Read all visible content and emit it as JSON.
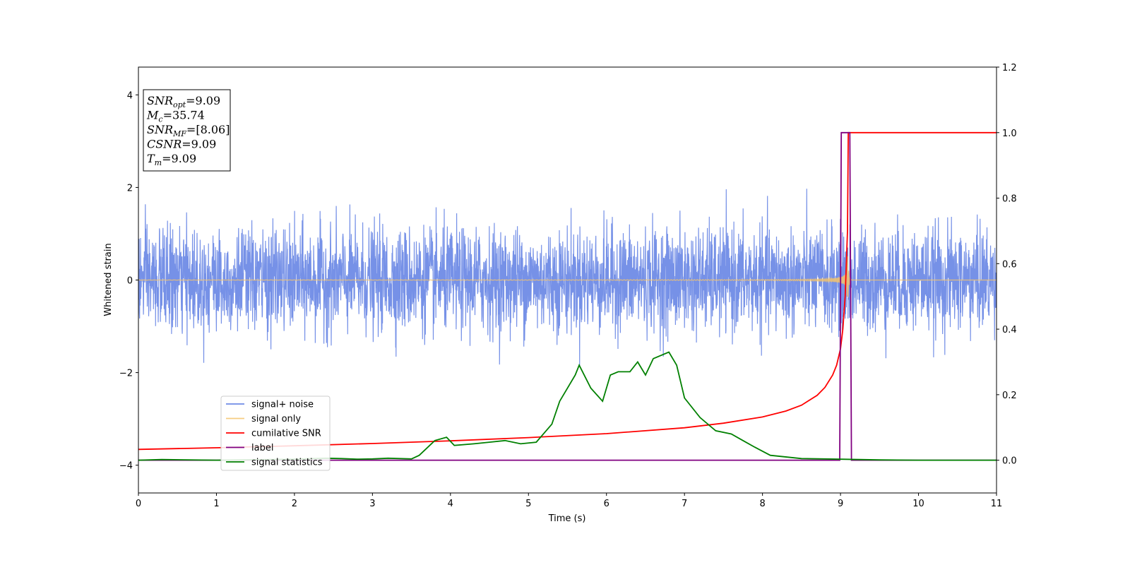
{
  "chart_data": {
    "type": "line",
    "xlabel": "Time (s)",
    "ylabel": "Whitened strain",
    "xlim": [
      0,
      11
    ],
    "ylim_left": [
      -4.6,
      4.6
    ],
    "ylim_right": [
      -0.1,
      1.2
    ],
    "x_ticks": [
      0,
      1,
      2,
      3,
      4,
      5,
      6,
      7,
      8,
      9,
      10,
      11
    ],
    "y_left_ticks": [
      {
        "value": -4,
        "label": "−4"
      },
      {
        "value": -2,
        "label": "−2"
      },
      {
        "value": 0,
        "label": "0"
      },
      {
        "value": 2,
        "label": "2"
      },
      {
        "value": 4,
        "label": "4"
      }
    ],
    "y_right_ticks": [
      {
        "value": 0.0,
        "label": "0.0"
      },
      {
        "value": 0.2,
        "label": "0.2"
      },
      {
        "value": 0.4,
        "label": "0.4"
      },
      {
        "value": 0.6,
        "label": "0.6"
      },
      {
        "value": 0.8,
        "label": "0.8"
      },
      {
        "value": 1.0,
        "label": "1.0"
      },
      {
        "value": 1.2,
        "label": "1.2"
      }
    ],
    "legend_position": "lower-left",
    "grid": false,
    "series": [
      {
        "name": "signal+ noise",
        "color": "#6f8be6",
        "axis": "left",
        "kind": "noise",
        "amplitude_range": [
          -2.2,
          2.2
        ]
      },
      {
        "name": "signal only",
        "color": "#f5c36b",
        "axis": "left",
        "kind": "chirp",
        "merger_time": 9.09
      },
      {
        "name": "cumilative SNR",
        "color": "#ff0000",
        "axis": "right",
        "x": [
          0,
          1,
          2,
          3,
          4,
          5,
          6,
          7,
          7.5,
          8,
          8.3,
          8.5,
          8.7,
          8.8,
          8.9,
          8.95,
          9.0,
          9.03,
          9.06,
          9.09,
          9.1,
          9.2,
          10,
          11
        ],
        "y": [
          0.033,
          0.038,
          0.044,
          0.051,
          0.059,
          0.069,
          0.081,
          0.099,
          0.113,
          0.132,
          0.15,
          0.168,
          0.198,
          0.222,
          0.26,
          0.29,
          0.34,
          0.4,
          0.5,
          0.7,
          1.0,
          1.0,
          1.0,
          1.0
        ]
      },
      {
        "name": "label",
        "color": "#800080",
        "axis": "right",
        "x": [
          0,
          8.99,
          9.01,
          9.12,
          9.14,
          11
        ],
        "y": [
          0,
          0,
          1,
          1,
          0,
          0
        ]
      },
      {
        "name": "signal statistics",
        "color": "#008000",
        "axis": "right",
        "x": [
          0,
          0.3,
          1,
          2,
          2.4,
          2.6,
          2.8,
          3,
          3.2,
          3.5,
          3.6,
          3.8,
          3.95,
          4.05,
          4.3,
          4.5,
          4.7,
          4.9,
          5.1,
          5.3,
          5.4,
          5.5,
          5.6,
          5.65,
          5.8,
          5.95,
          6.05,
          6.15,
          6.3,
          6.4,
          6.5,
          6.6,
          6.8,
          6.9,
          7.0,
          7.2,
          7.4,
          7.6,
          7.75,
          7.9,
          8.1,
          8.5,
          9.0,
          9.5,
          10,
          11
        ],
        "y": [
          0.0,
          0.002,
          0.0,
          0.003,
          0.006,
          0.005,
          0.003,
          0.004,
          0.006,
          0.004,
          0.015,
          0.06,
          0.07,
          0.045,
          0.05,
          0.055,
          0.06,
          0.05,
          0.055,
          0.11,
          0.18,
          0.22,
          0.26,
          0.29,
          0.22,
          0.18,
          0.26,
          0.27,
          0.27,
          0.3,
          0.26,
          0.31,
          0.33,
          0.29,
          0.19,
          0.13,
          0.09,
          0.08,
          0.06,
          0.04,
          0.015,
          0.005,
          0.003,
          0.001,
          0.0,
          0.0
        ]
      }
    ]
  },
  "annotation": {
    "lines": [
      {
        "var": "SNR",
        "sub": "opt",
        "value": "=9.09"
      },
      {
        "var": "M",
        "sub": "c",
        "value": "=35.74"
      },
      {
        "var": "SNR",
        "sub": "MF",
        "value": "=[8.06]"
      },
      {
        "var": "CSNR",
        "sub": "",
        "value": "=9.09"
      },
      {
        "var": "T",
        "sub": "m",
        "value": "=9.09"
      }
    ]
  }
}
